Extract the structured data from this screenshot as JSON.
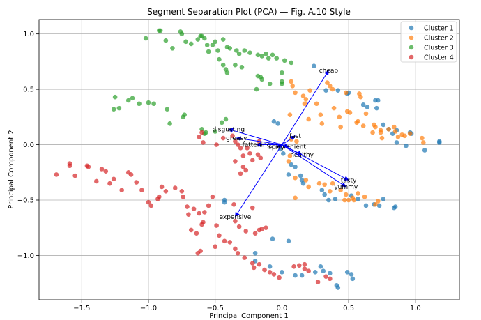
{
  "chart_data": {
    "type": "scatter",
    "title": "Segment Separation Plot (PCA) — Fig. A.10 Style",
    "xlabel": "Principal Component 1",
    "ylabel": "Principal Component 2",
    "xlim": [
      -1.82,
      1.33
    ],
    "ylim": [
      -1.4,
      1.13
    ],
    "xticks": [
      -1.5,
      -1.0,
      -0.5,
      0.0,
      0.5,
      1.0
    ],
    "xtick_labels": [
      "−1.5",
      "−1.0",
      "−0.5",
      "0.0",
      "0.5",
      "1.0"
    ],
    "yticks": [
      -1.0,
      -0.5,
      0.0,
      0.5,
      1.0
    ],
    "ytick_labels": [
      "−1.0",
      "−0.5",
      "0.0",
      "0.5",
      "1.0"
    ],
    "grid": true,
    "legend_position": "top-right",
    "series": [
      {
        "name": "Cluster 1",
        "color": "#1f77b4",
        "points": [
          [
            0.24,
            0.71
          ],
          [
            0.33,
            0.49
          ],
          [
            0.42,
            0.49
          ],
          [
            0.49,
            0.46
          ],
          [
            0.5,
            0.47
          ],
          [
            0.61,
            0.36
          ],
          [
            0.64,
            0.34
          ],
          [
            0.7,
            0.4
          ],
          [
            0.71,
            0.33
          ],
          [
            0.72,
            0.4
          ],
          [
            0.76,
            0.18
          ],
          [
            0.8,
            0.14
          ],
          [
            0.83,
            0.1
          ],
          [
            0.86,
            0.02
          ],
          [
            0.86,
            0.13
          ],
          [
            0.93,
            -0.01
          ],
          [
            0.96,
            0.11
          ],
          [
            0.97,
            0.1
          ],
          [
            1.07,
            -0.05
          ],
          [
            1.18,
            0.03
          ],
          [
            1.18,
            0.02
          ],
          [
            0.07,
            -0.18
          ],
          [
            0.1,
            -0.2
          ],
          [
            0.14,
            -0.28
          ],
          [
            0.15,
            -0.32
          ],
          [
            0.3,
            -0.41
          ],
          [
            0.32,
            -0.45
          ],
          [
            0.35,
            -0.5
          ],
          [
            0.4,
            -0.49
          ],
          [
            0.52,
            -0.46
          ],
          [
            0.57,
            -0.49
          ],
          [
            0.63,
            -0.55
          ],
          [
            0.69,
            -0.54
          ],
          [
            0.73,
            -0.55
          ],
          [
            0.76,
            -0.49
          ],
          [
            0.84,
            -0.57
          ],
          [
            0.85,
            -0.56
          ],
          [
            0.05,
            -0.27
          ],
          [
            0.16,
            -0.35
          ],
          [
            0.05,
            -0.87
          ],
          [
            -0.07,
            -0.85
          ],
          [
            -0.2,
            -0.98
          ],
          [
            -0.2,
            -1.05
          ],
          [
            -0.09,
            -1.1
          ],
          [
            0.0,
            -1.15
          ],
          [
            0.1,
            -1.18
          ],
          [
            0.15,
            -1.18
          ],
          [
            0.25,
            -1.15
          ],
          [
            0.29,
            -1.1
          ],
          [
            0.31,
            -1.14
          ],
          [
            0.36,
            -1.16
          ],
          [
            0.41,
            -1.27
          ],
          [
            0.42,
            -1.29
          ],
          [
            0.49,
            -1.15
          ],
          [
            0.52,
            -1.17
          ],
          [
            0.53,
            -1.21
          ],
          [
            -0.43,
            -0.5
          ],
          [
            -0.43,
            -0.52
          ],
          [
            -0.06,
            0.21
          ],
          [
            -0.03,
            0.19
          ],
          [
            0.01,
            -0.08
          ],
          [
            -0.01,
            -0.04
          ]
        ]
      },
      {
        "name": "Cluster 2",
        "color": "#ff7f0e",
        "points": [
          [
            0.07,
            0.57
          ],
          [
            0.08,
            0.53
          ],
          [
            0.1,
            0.47
          ],
          [
            0.16,
            0.44
          ],
          [
            0.18,
            0.41
          ],
          [
            0.21,
            0.49
          ],
          [
            0.17,
            0.37
          ],
          [
            0.34,
            0.56
          ],
          [
            0.36,
            0.53
          ],
          [
            0.38,
            0.5
          ],
          [
            0.48,
            0.47
          ],
          [
            0.58,
            0.46
          ],
          [
            0.59,
            0.43
          ],
          [
            0.49,
            0.3
          ],
          [
            0.56,
            0.2
          ],
          [
            0.57,
            0.21
          ],
          [
            0.51,
            0.29
          ],
          [
            0.61,
            0.17
          ],
          [
            0.69,
            0.18
          ],
          [
            0.68,
            0.11
          ],
          [
            0.7,
            0.16
          ],
          [
            0.74,
            0.13
          ],
          [
            0.74,
            0.11
          ],
          [
            0.75,
            0.06
          ],
          [
            0.8,
            0.14
          ],
          [
            0.84,
            0.16
          ],
          [
            0.85,
            0.12
          ],
          [
            0.87,
            0.07
          ],
          [
            0.9,
            0.09
          ],
          [
            0.92,
            0.08
          ],
          [
            0.96,
            0.1
          ],
          [
            1.05,
            0.06
          ],
          [
            1.06,
            0.02
          ],
          [
            0.07,
            0.05
          ],
          [
            0.11,
            0.03
          ],
          [
            0.06,
            -0.1
          ],
          [
            0.05,
            -0.15
          ],
          [
            0.1,
            -0.3
          ],
          [
            0.2,
            -0.38
          ],
          [
            0.28,
            -0.35
          ],
          [
            0.32,
            -0.36
          ],
          [
            0.36,
            -0.42
          ],
          [
            0.44,
            -0.41
          ],
          [
            0.48,
            -0.45
          ],
          [
            0.47,
            -0.5
          ],
          [
            0.5,
            -0.5
          ],
          [
            0.53,
            -0.48
          ],
          [
            0.57,
            -0.44
          ],
          [
            0.62,
            -0.47
          ],
          [
            0.7,
            -0.54
          ],
          [
            0.72,
            -0.51
          ],
          [
            0.18,
            -0.32
          ],
          [
            0.38,
            -0.35
          ],
          [
            0.1,
            -0.48
          ],
          [
            0.29,
            0.27
          ],
          [
            0.43,
            0.25
          ],
          [
            0.3,
            0.19
          ],
          [
            0.26,
            0.37
          ],
          [
            0.54,
            -0.5
          ],
          [
            0.63,
            0.28
          ],
          [
            0.39,
            0.33
          ],
          [
            0.2,
            0.23
          ],
          [
            0.06,
            0.27
          ],
          [
            0.44,
            0.16
          ]
        ]
      },
      {
        "name": "Cluster 3",
        "color": "#2ca02c",
        "points": [
          [
            -1.02,
            0.96
          ],
          [
            -0.92,
            1.03
          ],
          [
            -0.91,
            1.03
          ],
          [
            -0.87,
            0.94
          ],
          [
            -0.82,
            0.87
          ],
          [
            -0.76,
            1.02
          ],
          [
            -0.75,
            1.0
          ],
          [
            -0.72,
            0.93
          ],
          [
            -0.68,
            0.91
          ],
          [
            -0.63,
            0.95
          ],
          [
            -0.61,
            0.98
          ],
          [
            -0.6,
            0.98
          ],
          [
            -0.58,
            0.96
          ],
          [
            -0.56,
            0.9
          ],
          [
            -0.55,
            0.84
          ],
          [
            -0.52,
            0.9
          ],
          [
            -0.5,
            0.93
          ],
          [
            -0.48,
            0.85
          ],
          [
            -0.44,
            0.95
          ],
          [
            -0.41,
            0.88
          ],
          [
            -0.39,
            0.87
          ],
          [
            -0.34,
            0.85
          ],
          [
            -0.32,
            0.82
          ],
          [
            -0.28,
            0.85
          ],
          [
            -0.24,
            0.83
          ],
          [
            -0.18,
            0.81
          ],
          [
            -0.15,
            0.8
          ],
          [
            -0.12,
            0.82
          ],
          [
            -0.1,
            0.78
          ],
          [
            -0.07,
            0.81
          ],
          [
            -0.04,
            0.78
          ],
          [
            0.02,
            0.76
          ],
          [
            0.07,
            0.74
          ],
          [
            -0.47,
            0.77
          ],
          [
            -0.44,
            0.72
          ],
          [
            -0.42,
            0.68
          ],
          [
            -0.41,
            0.65
          ],
          [
            -0.35,
            0.72
          ],
          [
            -0.3,
            0.7
          ],
          [
            -0.18,
            0.62
          ],
          [
            -0.15,
            0.59
          ],
          [
            -0.09,
            0.55
          ],
          [
            0.0,
            0.57
          ],
          [
            0.0,
            0.55
          ],
          [
            -1.26,
            0.32
          ],
          [
            -1.25,
            0.43
          ],
          [
            -1.22,
            0.33
          ],
          [
            -1.15,
            0.4
          ],
          [
            -1.12,
            0.42
          ],
          [
            -1.07,
            0.37
          ],
          [
            -1.0,
            0.38
          ],
          [
            -0.96,
            0.37
          ],
          [
            -0.86,
            0.32
          ],
          [
            -0.84,
            0.19
          ],
          [
            -0.74,
            0.25
          ],
          [
            -0.73,
            0.27
          ],
          [
            -0.6,
            0.14
          ],
          [
            -0.57,
            0.11
          ],
          [
            -0.58,
            0.1
          ],
          [
            -0.5,
            0.12
          ],
          [
            -0.45,
            0.2
          ],
          [
            -0.42,
            0.23
          ],
          [
            -0.19,
            0.5
          ],
          [
            0.0,
            0.65
          ],
          [
            -0.16,
            0.61
          ]
        ]
      },
      {
        "name": "Cluster 4",
        "color": "#d62728",
        "points": [
          [
            -1.69,
            -0.27
          ],
          [
            -1.59,
            -0.17
          ],
          [
            -1.59,
            -0.19
          ],
          [
            -1.55,
            -0.28
          ],
          [
            -1.46,
            -0.19
          ],
          [
            -1.45,
            -0.2
          ],
          [
            -1.39,
            -0.33
          ],
          [
            -1.35,
            -0.22
          ],
          [
            -1.32,
            -0.24
          ],
          [
            -1.29,
            -0.35
          ],
          [
            -1.26,
            -0.31
          ],
          [
            -1.2,
            -0.41
          ],
          [
            -1.15,
            -0.25
          ],
          [
            -1.13,
            -0.27
          ],
          [
            -1.09,
            -0.34
          ],
          [
            -1.05,
            -0.41
          ],
          [
            -1.0,
            -0.52
          ],
          [
            -0.98,
            -0.55
          ],
          [
            -0.93,
            -0.49
          ],
          [
            -0.92,
            -0.47
          ],
          [
            -0.9,
            -0.38
          ],
          [
            -0.87,
            -0.42
          ],
          [
            -0.8,
            -0.39
          ],
          [
            -0.75,
            -0.42
          ],
          [
            -0.74,
            -0.47
          ],
          [
            -0.71,
            -0.56
          ],
          [
            -0.66,
            -0.58
          ],
          [
            -0.62,
            -0.62
          ],
          [
            -0.58,
            -0.61
          ],
          [
            -0.55,
            -0.55
          ],
          [
            -0.52,
            -0.47
          ],
          [
            -0.7,
            -0.63
          ],
          [
            -0.68,
            -0.77
          ],
          [
            -0.64,
            -0.8
          ],
          [
            -0.59,
            -0.7
          ],
          [
            -0.6,
            -0.72
          ],
          [
            -0.49,
            -0.73
          ],
          [
            -0.47,
            -0.82
          ],
          [
            -0.43,
            -0.87
          ],
          [
            -0.39,
            -0.88
          ],
          [
            -0.35,
            -0.94
          ],
          [
            -0.33,
            -0.98
          ],
          [
            -0.28,
            -1.02
          ],
          [
            -0.22,
            -1.07
          ],
          [
            -0.21,
            -1.11
          ],
          [
            -0.17,
            -1.08
          ],
          [
            -0.13,
            -1.13
          ],
          [
            -0.09,
            -1.15
          ],
          [
            -0.06,
            -1.17
          ],
          [
            -0.02,
            -1.2
          ],
          [
            0.09,
            -1.1
          ],
          [
            0.13,
            -1.09
          ],
          [
            0.17,
            -1.12
          ],
          [
            0.2,
            -1.14
          ],
          [
            0.27,
            -1.24
          ],
          [
            0.33,
            -1.19
          ],
          [
            0.36,
            -1.21
          ],
          [
            0.17,
            -1.08
          ],
          [
            -0.35,
            -0.69
          ],
          [
            -0.32,
            -0.74
          ],
          [
            -0.27,
            -0.78
          ],
          [
            -0.2,
            -0.8
          ],
          [
            -0.17,
            -0.77
          ],
          [
            -0.15,
            -0.76
          ],
          [
            -0.12,
            -0.75
          ],
          [
            -0.22,
            -0.57
          ],
          [
            -0.36,
            -0.54
          ],
          [
            -0.5,
            -0.92
          ],
          [
            -0.61,
            -0.96
          ],
          [
            -0.63,
            -0.98
          ],
          [
            -0.6,
            0.11
          ],
          [
            -0.62,
            0.07
          ],
          [
            -0.59,
            0.02
          ],
          [
            -0.49,
            0.0
          ],
          [
            -0.44,
            0.06
          ],
          [
            -0.37,
            0.08
          ],
          [
            -0.35,
            0.03
          ],
          [
            -0.33,
            0.0
          ],
          [
            -0.31,
            -0.03
          ],
          [
            -0.29,
            -0.1
          ],
          [
            -0.26,
            -0.03
          ],
          [
            -0.24,
            -0.08
          ],
          [
            -0.22,
            -0.14
          ],
          [
            -0.29,
            -0.2
          ],
          [
            -0.27,
            -0.23
          ],
          [
            -0.31,
            -0.26
          ],
          [
            -0.18,
            -0.09
          ],
          [
            -0.16,
            -0.12
          ],
          [
            -0.35,
            -0.15
          ],
          [
            -0.17,
            0.03
          ]
        ]
      }
    ],
    "loadings": [
      {
        "label": "cheap",
        "x": 0.35,
        "y": 0.67
      },
      {
        "label": "fast",
        "x": 0.1,
        "y": 0.08
      },
      {
        "label": "disgusting",
        "x": -0.4,
        "y": 0.14
      },
      {
        "label": "greasy",
        "x": -0.34,
        "y": 0.06
      },
      {
        "label": "fattening",
        "x": -0.19,
        "y": 0.0
      },
      {
        "label": "spicy",
        "x": -0.04,
        "y": -0.02
      },
      {
        "label": "convenient",
        "x": 0.05,
        "y": -0.02
      },
      {
        "label": "healthy",
        "x": 0.15,
        "y": -0.09
      },
      {
        "label": "tasty",
        "x": 0.5,
        "y": -0.32
      },
      {
        "label": "yummy",
        "x": 0.48,
        "y": -0.38
      },
      {
        "label": "expensive",
        "x": -0.35,
        "y": -0.65
      }
    ],
    "loading_color": "#0000ff"
  }
}
